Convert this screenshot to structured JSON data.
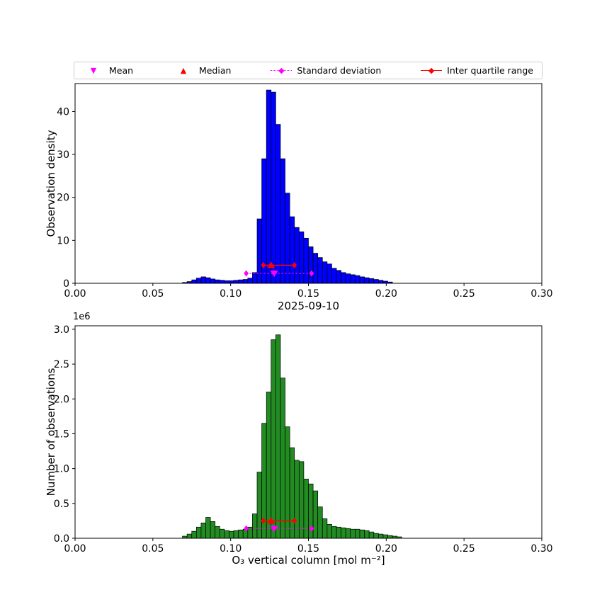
{
  "figure": {
    "title": "2025-09-10",
    "xlabel": "O₃ vertical column [mol m⁻²]",
    "offset_label": "1e6",
    "background": "#ffffff"
  },
  "legend": {
    "items": [
      {
        "label": "Mean",
        "marker": "triangle-down",
        "color": "#ff00ff",
        "line": "none"
      },
      {
        "label": "Median",
        "marker": "triangle-up",
        "color": "#ff0000",
        "line": "none"
      },
      {
        "label": "Standard deviation",
        "marker": "diamond",
        "color": "#ff00ff",
        "line": "dotted"
      },
      {
        "label": "Inter quartile range",
        "marker": "diamond",
        "color": "#ff0000",
        "line": "solid"
      }
    ]
  },
  "stats": {
    "mean": 0.128,
    "median": 0.126,
    "std_low": 0.11,
    "std_high": 0.152,
    "q1": 0.121,
    "q3": 0.141
  },
  "chart_data": [
    {
      "type": "bar",
      "title": "",
      "ylabel": "Observation density",
      "bar_color": "#0000ff",
      "edge_color": "#000000",
      "bin_start": 0.069,
      "bin_width": 0.003,
      "values": [
        0.2,
        0.4,
        0.8,
        1.2,
        1.5,
        1.3,
        1.0,
        0.8,
        0.7,
        0.6,
        0.6,
        0.7,
        0.8,
        0.9,
        1.2,
        2.5,
        15,
        29,
        45,
        44.5,
        37,
        29,
        21,
        15.5,
        13,
        12,
        10.5,
        8.5,
        7,
        6,
        5,
        4.5,
        3.5,
        3,
        2.5,
        2.2,
        2.0,
        1.8,
        1.5,
        1.3,
        1.1,
        0.9,
        0.7,
        0.5,
        0.3
      ],
      "xlim": [
        0.0,
        0.3
      ],
      "ylim": [
        0,
        46.5
      ],
      "xticks": [
        0.0,
        0.05,
        0.1,
        0.15,
        0.2,
        0.25,
        0.3
      ],
      "xtick_labels": [
        "0.00",
        "0.05",
        "0.10",
        "0.15",
        "0.20",
        "0.25",
        "0.30"
      ],
      "yticks": [
        0,
        10,
        20,
        30,
        40
      ],
      "ytick_labels": [
        "0",
        "10",
        "20",
        "30",
        "40"
      ],
      "grid": false,
      "markers": {
        "std_y": 2.3,
        "mean_y": 2.3,
        "iqr_y": 4.2,
        "median_y": 4.2
      }
    },
    {
      "type": "bar",
      "title": "2025-09-10",
      "ylabel": "Number of observations",
      "y_scale_label": "1e6",
      "bar_color": "#228B22",
      "edge_color": "#000000",
      "bin_start": 0.069,
      "bin_width": 0.003,
      "values": [
        0.03,
        0.06,
        0.1,
        0.16,
        0.22,
        0.3,
        0.24,
        0.17,
        0.13,
        0.11,
        0.1,
        0.11,
        0.12,
        0.13,
        0.16,
        0.35,
        0.95,
        1.65,
        2.1,
        2.85,
        2.92,
        2.3,
        1.6,
        1.3,
        1.12,
        1.1,
        0.85,
        0.78,
        0.68,
        0.45,
        0.28,
        0.2,
        0.17,
        0.16,
        0.15,
        0.14,
        0.13,
        0.13,
        0.12,
        0.11,
        0.09,
        0.07,
        0.06,
        0.05,
        0.04,
        0.03,
        0.02
      ],
      "xlim": [
        0.0,
        0.3
      ],
      "ylim": [
        0,
        3.05
      ],
      "xticks": [
        0.0,
        0.05,
        0.1,
        0.15,
        0.2,
        0.25,
        0.3
      ],
      "xtick_labels": [
        "0.00",
        "0.05",
        "0.10",
        "0.15",
        "0.20",
        "0.25",
        "0.30"
      ],
      "yticks": [
        0,
        0.5,
        1.0,
        1.5,
        2.0,
        2.5,
        3.0
      ],
      "ytick_labels": [
        "0.0",
        "0.5",
        "1.0",
        "1.5",
        "2.0",
        "2.5",
        "3.0"
      ],
      "grid": false,
      "markers": {
        "std_y": 0.14,
        "mean_y": 0.14,
        "iqr_y": 0.25,
        "median_y": 0.25
      }
    }
  ]
}
